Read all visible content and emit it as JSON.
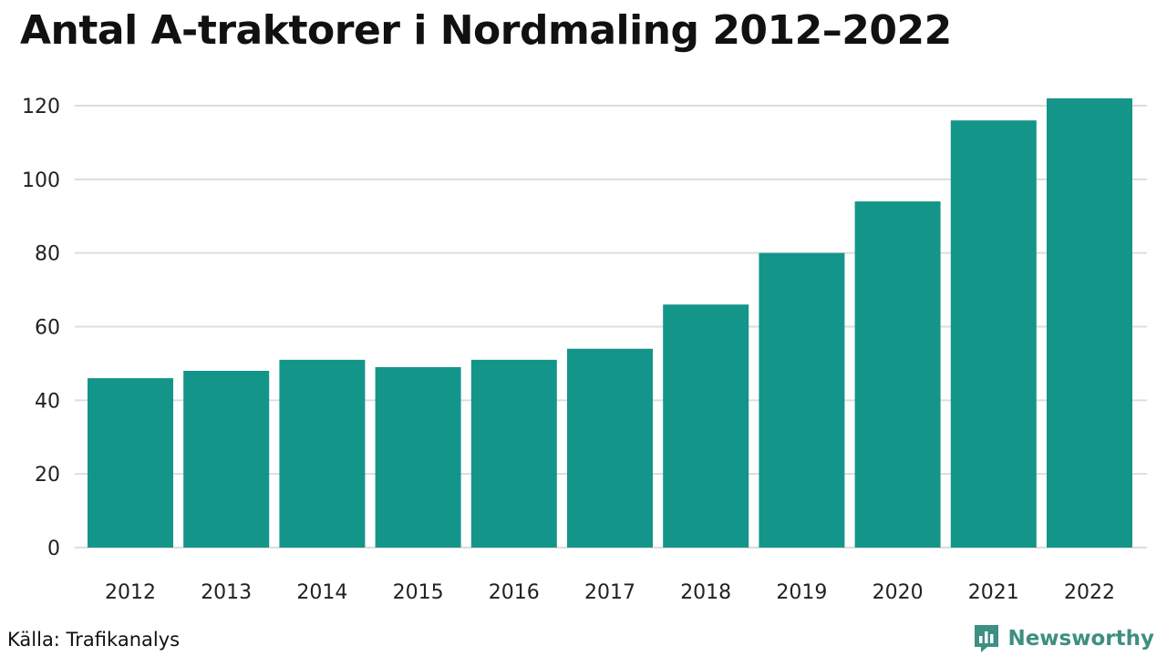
{
  "title": "Antal A-traktorer i Nordmaling 2012–2022",
  "source": "Källa: Trafikanalys",
  "brand": {
    "name": "Newsworthy",
    "icon": "newsworthy-logo-icon",
    "color": "#3d8f82"
  },
  "chart_data": {
    "type": "bar",
    "categories": [
      "2012",
      "2013",
      "2014",
      "2015",
      "2016",
      "2017",
      "2018",
      "2019",
      "2020",
      "2021",
      "2022"
    ],
    "values": [
      46,
      48,
      51,
      49,
      51,
      54,
      66,
      80,
      94,
      116,
      122
    ],
    "ylim": [
      0,
      120
    ],
    "yticks": [
      0,
      20,
      40,
      60,
      80,
      100,
      120
    ],
    "grid": true,
    "bar_color": "#14958a",
    "grid_color": "#dddddd"
  }
}
